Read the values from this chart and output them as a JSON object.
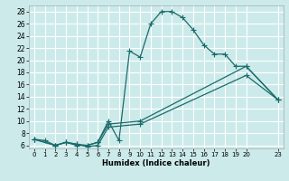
{
  "bg_color": "#cceaea",
  "grid_color": "#ffffff",
  "line_color": "#1a6b6b",
  "xlabel": "Humidex (Indice chaleur)",
  "xlim": [
    -0.5,
    23.5
  ],
  "ylim": [
    5.5,
    29.0
  ],
  "xticks": [
    0,
    1,
    2,
    3,
    4,
    5,
    6,
    7,
    8,
    9,
    10,
    11,
    12,
    13,
    14,
    15,
    16,
    17,
    18,
    19,
    20,
    23
  ],
  "yticks": [
    6,
    8,
    10,
    12,
    14,
    16,
    18,
    20,
    22,
    24,
    26,
    28
  ],
  "line1_x": [
    0,
    1,
    2,
    3,
    4,
    5,
    6,
    7,
    8,
    9,
    10,
    11,
    12,
    13,
    14,
    15,
    16,
    17,
    18,
    19,
    20,
    23
  ],
  "line1_y": [
    7.0,
    6.8,
    6.0,
    6.5,
    6.0,
    6.0,
    6.5,
    10.0,
    6.8,
    21.5,
    20.5,
    26.0,
    28.0,
    28.0,
    27.0,
    25.0,
    22.5,
    21.0,
    21.0,
    19.0,
    19.0,
    13.5
  ],
  "line2_x": [
    0,
    2,
    3,
    4,
    5,
    6,
    7,
    10,
    20,
    23
  ],
  "line2_y": [
    7.0,
    6.0,
    6.5,
    6.2,
    6.0,
    6.5,
    9.5,
    10.0,
    19.0,
    13.5
  ],
  "line3_x": [
    0,
    2,
    3,
    4,
    5,
    6,
    7,
    10,
    20,
    23
  ],
  "line3_y": [
    7.0,
    6.0,
    6.5,
    6.2,
    5.8,
    6.0,
    9.0,
    9.5,
    17.5,
    13.5
  ]
}
